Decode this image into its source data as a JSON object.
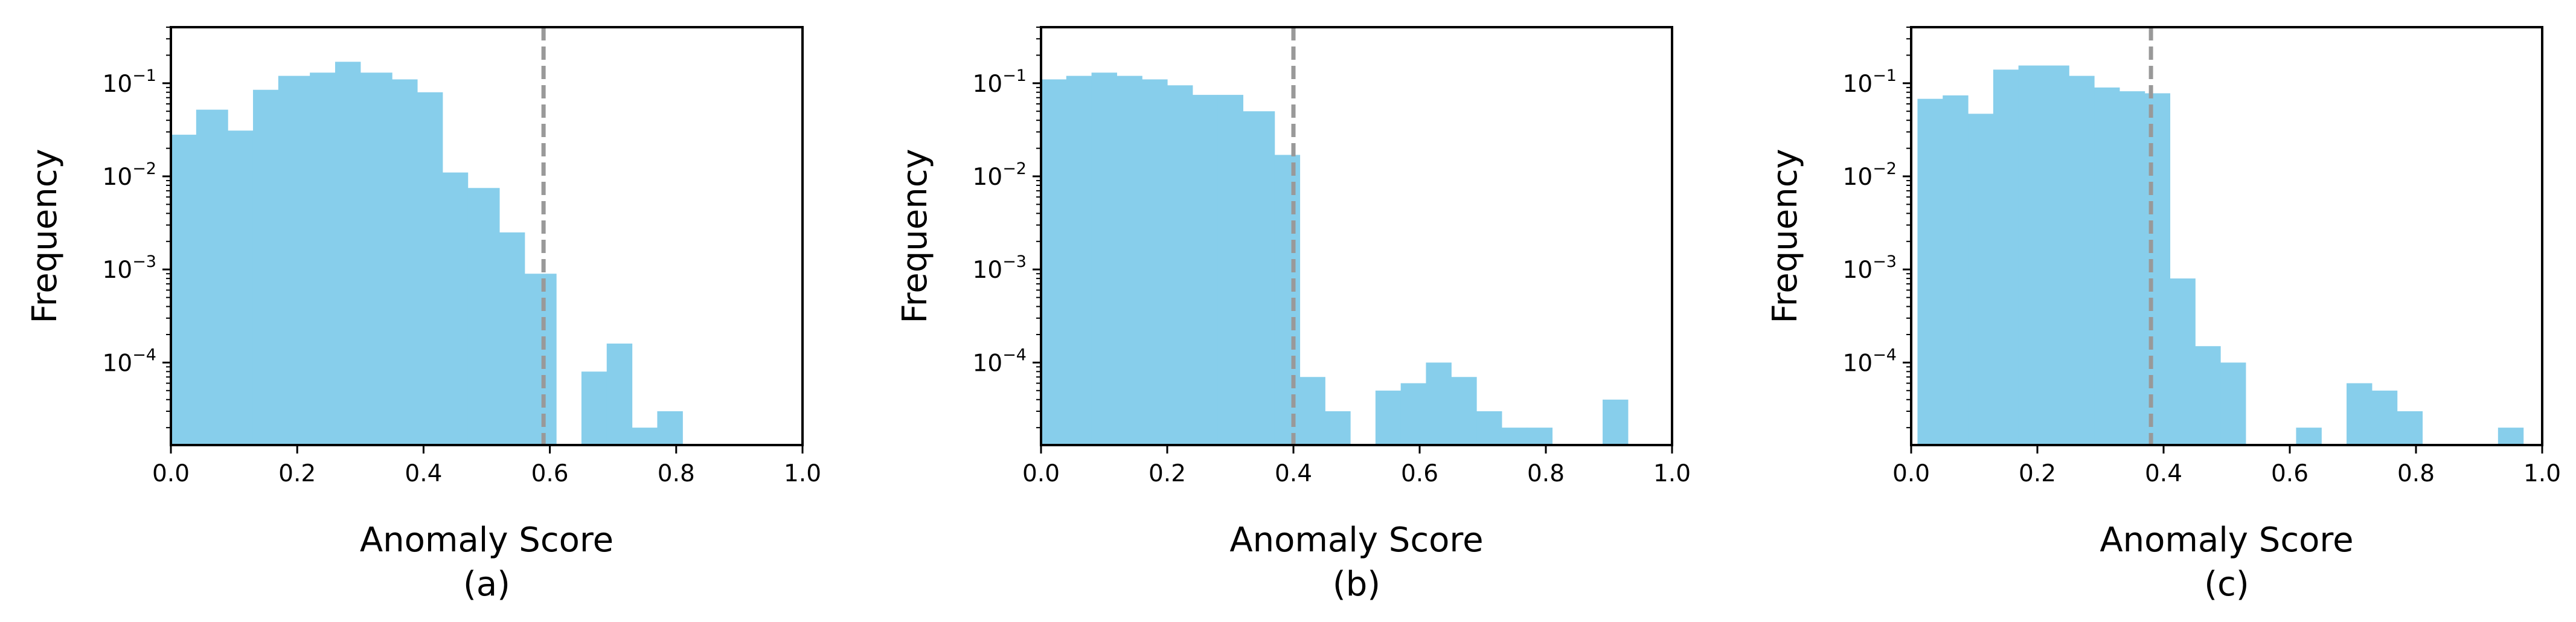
{
  "colors": {
    "bar": "#87ceeb",
    "threshold_line": "#999999",
    "axis": "#000000",
    "background": "#ffffff"
  },
  "chart_data": [
    {
      "type": "bar",
      "panel_label": "(a)",
      "xlabel": "Anomaly Score",
      "ylabel": "Frequency",
      "xlim": [
        0,
        1
      ],
      "ylim": [
        1.3e-05,
        0.4
      ],
      "yscale": "log",
      "grid": false,
      "xticks": [
        "0.0",
        "0.2",
        "0.4",
        "0.6",
        "0.8",
        "1.0"
      ],
      "xtick_values": [
        0,
        0.2,
        0.4,
        0.6,
        0.8,
        1.0
      ],
      "yticks": [
        {
          "value": 0.1,
          "base": "10",
          "exp": "−1"
        },
        {
          "value": 0.01,
          "base": "10",
          "exp": "−2"
        },
        {
          "value": 0.001,
          "base": "10",
          "exp": "−3"
        },
        {
          "value": 0.0001,
          "base": "10",
          "exp": "−4"
        }
      ],
      "threshold": 0.59,
      "bins": [
        {
          "x0": 0.0,
          "x1": 0.04,
          "y": 0.028
        },
        {
          "x0": 0.04,
          "x1": 0.09,
          "y": 0.052
        },
        {
          "x0": 0.09,
          "x1": 0.13,
          "y": 0.031
        },
        {
          "x0": 0.13,
          "x1": 0.17,
          "y": 0.085
        },
        {
          "x0": 0.17,
          "x1": 0.22,
          "y": 0.12
        },
        {
          "x0": 0.22,
          "x1": 0.26,
          "y": 0.13
        },
        {
          "x0": 0.26,
          "x1": 0.3,
          "y": 0.17
        },
        {
          "x0": 0.3,
          "x1": 0.35,
          "y": 0.13
        },
        {
          "x0": 0.35,
          "x1": 0.39,
          "y": 0.11
        },
        {
          "x0": 0.39,
          "x1": 0.43,
          "y": 0.08
        },
        {
          "x0": 0.43,
          "x1": 0.47,
          "y": 0.011
        },
        {
          "x0": 0.47,
          "x1": 0.52,
          "y": 0.0075
        },
        {
          "x0": 0.52,
          "x1": 0.56,
          "y": 0.0025
        },
        {
          "x0": 0.56,
          "x1": 0.61,
          "y": 0.0009
        },
        {
          "x0": 0.65,
          "x1": 0.69,
          "y": 8e-05
        },
        {
          "x0": 0.69,
          "x1": 0.73,
          "y": 0.00016
        },
        {
          "x0": 0.73,
          "x1": 0.77,
          "y": 2e-05
        },
        {
          "x0": 0.77,
          "x1": 0.81,
          "y": 3e-05
        }
      ]
    },
    {
      "type": "bar",
      "panel_label": "(b)",
      "xlabel": "Anomaly Score",
      "ylabel": "Frequency",
      "xlim": [
        0,
        1
      ],
      "ylim": [
        1.3e-05,
        0.4
      ],
      "yscale": "log",
      "grid": false,
      "xticks": [
        "0.0",
        "0.2",
        "0.4",
        "0.6",
        "0.8",
        "1.0"
      ],
      "xtick_values": [
        0,
        0.2,
        0.4,
        0.6,
        0.8,
        1.0
      ],
      "yticks": [
        {
          "value": 0.1,
          "base": "10",
          "exp": "−1"
        },
        {
          "value": 0.01,
          "base": "10",
          "exp": "−2"
        },
        {
          "value": 0.001,
          "base": "10",
          "exp": "−3"
        },
        {
          "value": 0.0001,
          "base": "10",
          "exp": "−4"
        }
      ],
      "threshold": 0.4,
      "bins": [
        {
          "x0": 0.0,
          "x1": 0.04,
          "y": 0.11
        },
        {
          "x0": 0.04,
          "x1": 0.08,
          "y": 0.12
        },
        {
          "x0": 0.08,
          "x1": 0.12,
          "y": 0.13
        },
        {
          "x0": 0.12,
          "x1": 0.16,
          "y": 0.12
        },
        {
          "x0": 0.16,
          "x1": 0.2,
          "y": 0.11
        },
        {
          "x0": 0.2,
          "x1": 0.24,
          "y": 0.095
        },
        {
          "x0": 0.24,
          "x1": 0.28,
          "y": 0.075
        },
        {
          "x0": 0.28,
          "x1": 0.32,
          "y": 0.075
        },
        {
          "x0": 0.32,
          "x1": 0.37,
          "y": 0.05
        },
        {
          "x0": 0.37,
          "x1": 0.41,
          "y": 0.017
        },
        {
          "x0": 0.41,
          "x1": 0.45,
          "y": 7e-05
        },
        {
          "x0": 0.45,
          "x1": 0.49,
          "y": 3e-05
        },
        {
          "x0": 0.53,
          "x1": 0.57,
          "y": 5e-05
        },
        {
          "x0": 0.57,
          "x1": 0.61,
          "y": 6e-05
        },
        {
          "x0": 0.61,
          "x1": 0.65,
          "y": 0.0001
        },
        {
          "x0": 0.65,
          "x1": 0.69,
          "y": 7e-05
        },
        {
          "x0": 0.69,
          "x1": 0.73,
          "y": 3e-05
        },
        {
          "x0": 0.73,
          "x1": 0.77,
          "y": 2e-05
        },
        {
          "x0": 0.77,
          "x1": 0.81,
          "y": 2e-05
        },
        {
          "x0": 0.89,
          "x1": 0.93,
          "y": 4e-05
        }
      ]
    },
    {
      "type": "bar",
      "panel_label": "(c)",
      "xlabel": "Anomaly Score",
      "ylabel": "Frequency",
      "xlim": [
        0,
        1
      ],
      "ylim": [
        1.3e-05,
        0.4
      ],
      "yscale": "log",
      "grid": false,
      "xticks": [
        "0.0",
        "0.2",
        "0.4",
        "0.6",
        "0.8",
        "1.0"
      ],
      "xtick_values": [
        0,
        0.2,
        0.4,
        0.6,
        0.8,
        1.0
      ],
      "yticks": [
        {
          "value": 0.1,
          "base": "10",
          "exp": "−1"
        },
        {
          "value": 0.01,
          "base": "10",
          "exp": "−2"
        },
        {
          "value": 0.001,
          "base": "10",
          "exp": "−3"
        },
        {
          "value": 0.0001,
          "base": "10",
          "exp": "−4"
        }
      ],
      "threshold": 0.38,
      "bins": [
        {
          "x0": 0.01,
          "x1": 0.05,
          "y": 0.068
        },
        {
          "x0": 0.05,
          "x1": 0.09,
          "y": 0.074
        },
        {
          "x0": 0.09,
          "x1": 0.13,
          "y": 0.047
        },
        {
          "x0": 0.13,
          "x1": 0.17,
          "y": 0.14
        },
        {
          "x0": 0.17,
          "x1": 0.21,
          "y": 0.155
        },
        {
          "x0": 0.21,
          "x1": 0.25,
          "y": 0.155
        },
        {
          "x0": 0.25,
          "x1": 0.29,
          "y": 0.12
        },
        {
          "x0": 0.29,
          "x1": 0.33,
          "y": 0.09
        },
        {
          "x0": 0.33,
          "x1": 0.37,
          "y": 0.082
        },
        {
          "x0": 0.37,
          "x1": 0.41,
          "y": 0.078
        },
        {
          "x0": 0.41,
          "x1": 0.45,
          "y": 0.0008
        },
        {
          "x0": 0.45,
          "x1": 0.49,
          "y": 0.00015
        },
        {
          "x0": 0.49,
          "x1": 0.53,
          "y": 0.0001
        },
        {
          "x0": 0.61,
          "x1": 0.65,
          "y": 2e-05
        },
        {
          "x0": 0.69,
          "x1": 0.73,
          "y": 6e-05
        },
        {
          "x0": 0.73,
          "x1": 0.77,
          "y": 5e-05
        },
        {
          "x0": 0.77,
          "x1": 0.81,
          "y": 3e-05
        },
        {
          "x0": 0.93,
          "x1": 0.97,
          "y": 2e-05
        }
      ]
    }
  ]
}
